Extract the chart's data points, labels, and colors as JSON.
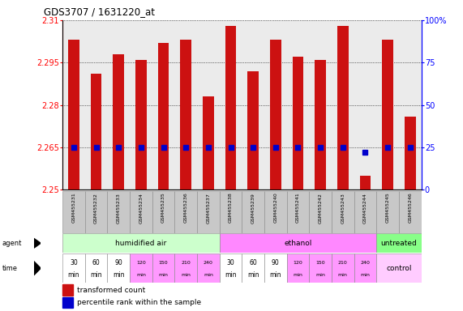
{
  "title": "GDS3707 / 1631220_at",
  "samples": [
    "GSM455231",
    "GSM455232",
    "GSM455233",
    "GSM455234",
    "GSM455235",
    "GSM455236",
    "GSM455237",
    "GSM455238",
    "GSM455239",
    "GSM455240",
    "GSM455241",
    "GSM455242",
    "GSM455243",
    "GSM455244",
    "GSM455245",
    "GSM455246"
  ],
  "bar_values": [
    2.303,
    2.291,
    2.298,
    2.296,
    2.302,
    2.303,
    2.283,
    2.308,
    2.292,
    2.303,
    2.297,
    2.296,
    2.308,
    2.255,
    2.303,
    2.276
  ],
  "percentile_values": [
    25,
    25,
    25,
    25,
    25,
    25,
    25,
    25,
    25,
    25,
    25,
    25,
    25,
    22,
    25,
    25
  ],
  "ymin": 2.25,
  "ymax": 2.31,
  "yticks_left": [
    2.25,
    2.265,
    2.28,
    2.295,
    2.31
  ],
  "yticks_right": [
    0,
    25,
    50,
    75,
    100
  ],
  "bar_color": "#cc1111",
  "dot_color": "#0000cc",
  "chart_bg": "#ebebeb",
  "agent_groups": [
    {
      "label": "humidified air",
      "start": 0,
      "end": 7,
      "color": "#ccffcc"
    },
    {
      "label": "ethanol",
      "start": 7,
      "end": 14,
      "color": "#ff88ff"
    },
    {
      "label": "untreated",
      "start": 14,
      "end": 16,
      "color": "#88ff88"
    }
  ],
  "time_texts": [
    "30\nmin",
    "60\nmin",
    "90\nmin",
    "120\nmin",
    "150\nmin",
    "210\nmin",
    "240\nmin",
    "30\nmin",
    "60\nmin",
    "90\nmin",
    "120\nmin",
    "150\nmin",
    "210\nmin",
    "240\nmin"
  ],
  "time_colors_14": [
    "#ffffff",
    "#ffffff",
    "#ffffff",
    "#ff99ff",
    "#ff99ff",
    "#ff99ff",
    "#ff99ff",
    "#ffffff",
    "#ffffff",
    "#ffffff",
    "#ff99ff",
    "#ff99ff",
    "#ff99ff",
    "#ff99ff"
  ],
  "control_color": "#ffccff",
  "legend_items": [
    {
      "color": "#cc1111",
      "label": "transformed count"
    },
    {
      "color": "#0000cc",
      "label": "percentile rank within the sample"
    }
  ]
}
